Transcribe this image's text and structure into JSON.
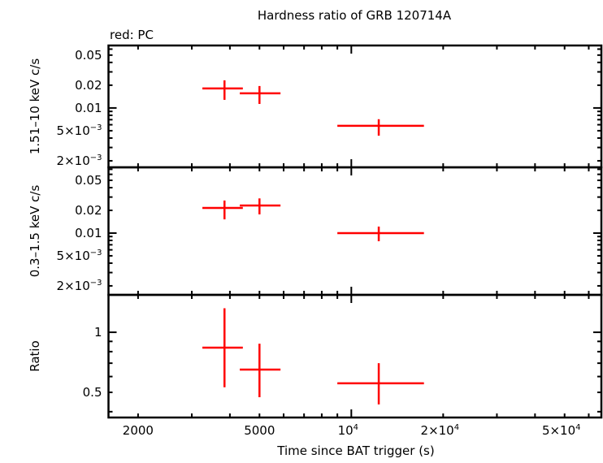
{
  "chart_data": {
    "type": "scatter",
    "title": "Hardness ratio of GRB 120714A",
    "subtitle": "red: PC",
    "xlabel": "Time since BAT trigger (s)",
    "xscale": "log",
    "xlim": [
      1600,
      66000
    ],
    "xticks": [
      {
        "value": 2000,
        "label": "2000"
      },
      {
        "value": 5000,
        "label": "5000"
      },
      {
        "value": 10000,
        "label": "10",
        "sup": "4"
      },
      {
        "value": 20000,
        "label": "2×10",
        "sup": "4"
      },
      {
        "value": 50000,
        "label": "5×10",
        "sup": "4"
      }
    ],
    "color": "#ff0000",
    "panels": [
      {
        "ylabel": "1.51–10 keV c/s",
        "yscale": "log",
        "ylim": [
          0.00164,
          0.067
        ],
        "yticks": [
          {
            "value": 0.05,
            "label": "0.05"
          },
          {
            "value": 0.02,
            "label": "0.02"
          },
          {
            "value": 0.01,
            "label": "0.01"
          },
          {
            "value": 0.005,
            "label": "5×10",
            "sup": "−3"
          },
          {
            "value": 0.002,
            "label": "2×10",
            "sup": "−3"
          }
        ],
        "points": [
          {
            "x": 3840,
            "xlo": 3250,
            "xhi": 4410,
            "y": 0.0181,
            "ylo": 0.0128,
            "yhi": 0.0232
          },
          {
            "x": 5000,
            "xlo": 4310,
            "xhi": 5860,
            "y": 0.0156,
            "ylo": 0.0113,
            "yhi": 0.0195
          },
          {
            "x": 12300,
            "xlo": 9000,
            "xhi": 17300,
            "y": 0.0058,
            "ylo": 0.0043,
            "yhi": 0.0071
          }
        ]
      },
      {
        "ylabel": "0.3–1.5 keV c/s",
        "yscale": "log",
        "ylim": [
          0.00152,
          0.0743
        ],
        "yticks": [
          {
            "value": 0.05,
            "label": "0.05"
          },
          {
            "value": 0.02,
            "label": "0.02"
          },
          {
            "value": 0.01,
            "label": "0.01"
          },
          {
            "value": 0.005,
            "label": "5×10",
            "sup": "−3"
          },
          {
            "value": 0.002,
            "label": "2×10",
            "sup": "−3"
          }
        ],
        "points": [
          {
            "x": 3840,
            "xlo": 3250,
            "xhi": 4410,
            "y": 0.0215,
            "ylo": 0.0152,
            "yhi": 0.027
          },
          {
            "x": 5000,
            "xlo": 4310,
            "xhi": 5860,
            "y": 0.0232,
            "ylo": 0.0177,
            "yhi": 0.0288
          },
          {
            "x": 12300,
            "xlo": 9000,
            "xhi": 17300,
            "y": 0.01,
            "ylo": 0.0078,
            "yhi": 0.0122
          }
        ]
      },
      {
        "ylabel": "Ratio",
        "yscale": "log",
        "ylim": [
          0.374,
          1.54
        ],
        "yticks": [
          {
            "value": 1,
            "label": "1"
          },
          {
            "value": 0.5,
            "label": "0.5"
          }
        ],
        "points": [
          {
            "x": 3840,
            "xlo": 3250,
            "xhi": 4410,
            "y": 0.837,
            "ylo": 0.53,
            "yhi": 1.32
          },
          {
            "x": 5000,
            "xlo": 4310,
            "xhi": 5860,
            "y": 0.65,
            "ylo": 0.473,
            "yhi": 0.877
          },
          {
            "x": 12300,
            "xlo": 9000,
            "xhi": 17300,
            "y": 0.555,
            "ylo": 0.435,
            "yhi": 0.7
          }
        ]
      }
    ]
  }
}
